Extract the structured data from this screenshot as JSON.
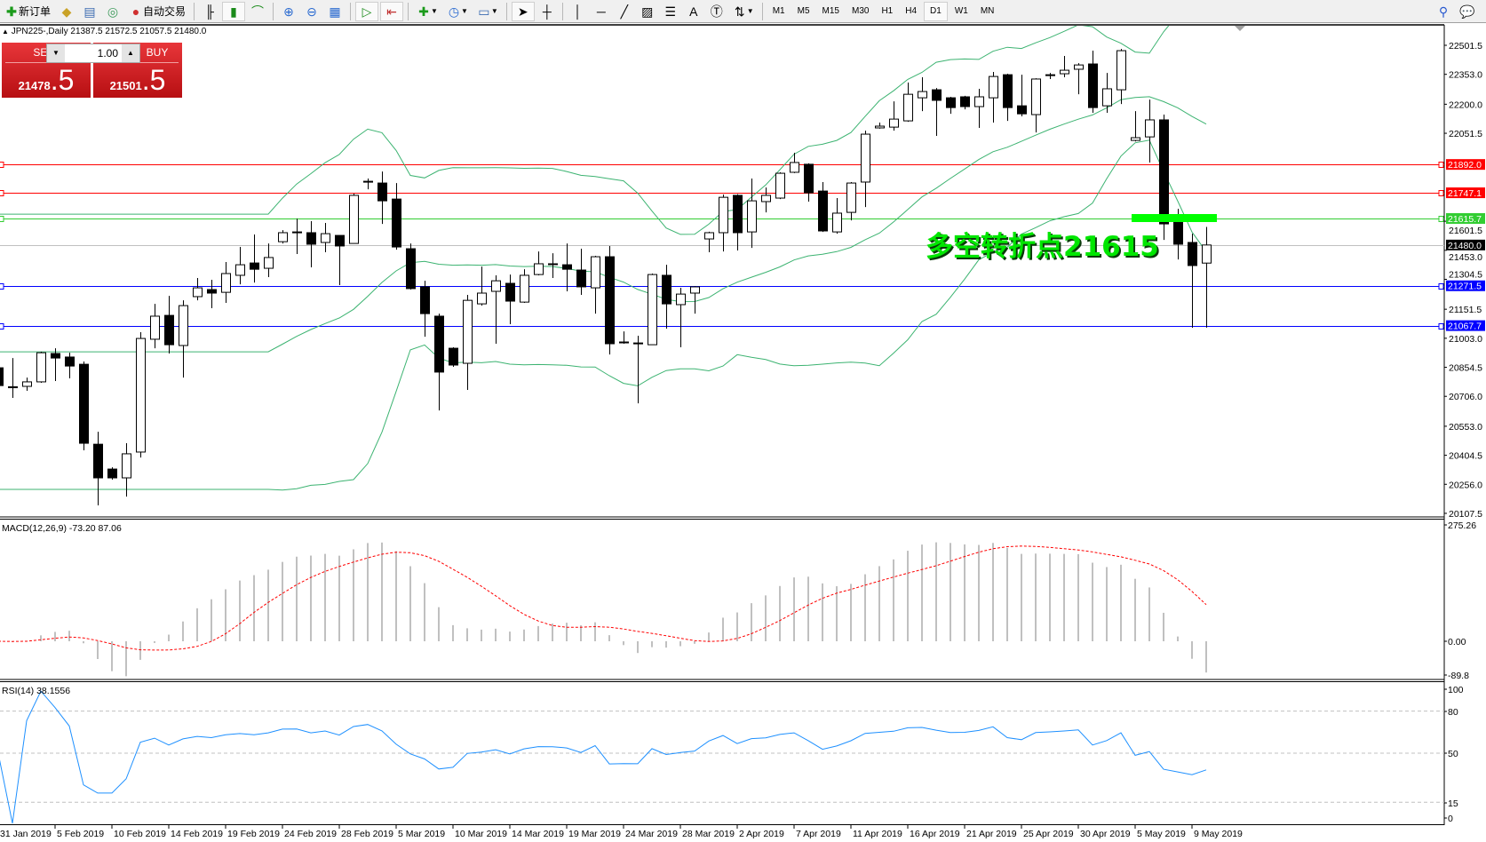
{
  "toolbar": {
    "new_order": "新订单",
    "auto_trading": "自动交易",
    "periods": [
      "M1",
      "M5",
      "M15",
      "M30",
      "H1",
      "H4",
      "D1",
      "W1",
      "MN"
    ],
    "active_period": "D1",
    "draw_text_tool": "A"
  },
  "chart": {
    "header": "JPN225-,Daily  21387.5 21572.5 21057.5 21480.0",
    "symbol": "JPN225-",
    "timeframe": "Daily",
    "last_ohlc": {
      "open": 21387.5,
      "high": 21572.5,
      "low": 21057.5,
      "close": 21480.0
    }
  },
  "trade_panel": {
    "sell_label": "SELL",
    "buy_label": "BUY",
    "volume": "1.00",
    "sell_price_main": "21478",
    "sell_price_frac": ".5",
    "buy_price_main": "21501",
    "buy_price_frac": ".5"
  },
  "annotation": {
    "text": "多空转折点21615",
    "color": "#00e600"
  },
  "price_axis": [
    "22501.5",
    "22353.0",
    "22200.0",
    "22051.5",
    "21601.5",
    "21453.0",
    "21304.5",
    "21151.5",
    "21003.0",
    "20854.5",
    "20706.0",
    "20553.0",
    "20404.5",
    "20256.0",
    "20107.5"
  ],
  "levels": [
    {
      "price": "21892.0",
      "color": "#ff0000"
    },
    {
      "price": "21747.1",
      "color": "#ff0000"
    },
    {
      "price": "21615.7",
      "color": "#32cd32"
    },
    {
      "price": "21480.0",
      "color": "#000000",
      "line_color": "#c0c0c0"
    },
    {
      "price": "21271.5",
      "color": "#0000ff"
    },
    {
      "price": "21067.7",
      "color": "#0000ff"
    }
  ],
  "macd": {
    "label": "MACD(12,26,9) -73.20 87.06",
    "axis": [
      "275.26",
      "0.00",
      "-89.8"
    ],
    "hist_color": "#c0c0c0",
    "signal_color": "#ff0000"
  },
  "rsi": {
    "label": "RSI(14) 38.1556",
    "axis": [
      "100",
      "80",
      "50",
      "15",
      "0"
    ],
    "line_color": "#1e90ff"
  },
  "bands_color": "#3cb371",
  "dates": [
    "31 Jan 2019",
    "5 Feb 2019",
    "10 Feb 2019",
    "14 Feb 2019",
    "19 Feb 2019",
    "24 Feb 2019",
    "28 Feb 2019",
    "5 Mar 2019",
    "10 Mar 2019",
    "14 Mar 2019",
    "19 Mar 2019",
    "24 Mar 2019",
    "28 Mar 2019",
    "2 Apr 2019",
    "7 Apr 2019",
    "11 Apr 2019",
    "16 Apr 2019",
    "21 Apr 2019",
    "25 Apr 2019",
    "30 Apr 2019",
    "5 May 2019",
    "9 May 2019"
  ],
  "chart_data": {
    "type": "candlestick",
    "ohlc_order": [
      "open",
      "high",
      "low",
      "close"
    ],
    "candles": [
      [
        20852,
        20870,
        20734,
        20761
      ],
      [
        20755,
        20902,
        20698,
        20750
      ],
      [
        20757,
        20802,
        20734,
        20780
      ],
      [
        20780,
        20934,
        20775,
        20929
      ],
      [
        20925,
        20952,
        20784,
        20902
      ],
      [
        20907,
        20929,
        20798,
        20861
      ],
      [
        20870,
        20884,
        20430,
        20466
      ],
      [
        20461,
        20525,
        20148,
        20289
      ],
      [
        20334,
        20343,
        20280,
        20289
      ],
      [
        20289,
        20466,
        20193,
        20412
      ],
      [
        20421,
        21034,
        20393,
        21002
      ],
      [
        20998,
        21179,
        20952,
        21116
      ],
      [
        21120,
        21220,
        20925,
        20970
      ],
      [
        20966,
        21197,
        20802,
        21170
      ],
      [
        21216,
        21311,
        21197,
        21261
      ],
      [
        21252,
        21302,
        21157,
        21234
      ],
      [
        21238,
        21393,
        21184,
        21334
      ],
      [
        21325,
        21470,
        21279,
        21379
      ],
      [
        21388,
        21534,
        21288,
        21356
      ],
      [
        21361,
        21488,
        21316,
        21416
      ],
      [
        21497,
        21556,
        21488,
        21543
      ],
      [
        21547,
        21615,
        21434,
        21545
      ],
      [
        21543,
        21602,
        21366,
        21484
      ],
      [
        21493,
        21593,
        21443,
        21538
      ],
      [
        21529,
        21529,
        21275,
        21475
      ],
      [
        21488,
        21743,
        21488,
        21734
      ],
      [
        21806,
        21820,
        21765,
        21804
      ],
      [
        21797,
        21856,
        21588,
        21706
      ],
      [
        21715,
        21797,
        21456,
        21470
      ],
      [
        21461,
        21488,
        21252,
        21257
      ],
      [
        21266,
        21297,
        21011,
        21129
      ],
      [
        21116,
        21129,
        20634,
        20830
      ],
      [
        20952,
        20957,
        20857,
        20866
      ],
      [
        20875,
        21225,
        20739,
        21197
      ],
      [
        21179,
        21370,
        21170,
        21234
      ],
      [
        21243,
        21325,
        20975,
        21297
      ],
      [
        21284,
        21329,
        21075,
        21193
      ],
      [
        21188,
        21356,
        21184,
        21325
      ],
      [
        21329,
        21447,
        21325,
        21384
      ],
      [
        21384,
        21438,
        21311,
        21382
      ],
      [
        21379,
        21488,
        21243,
        21356
      ],
      [
        21352,
        21461,
        21225,
        21266
      ],
      [
        21261,
        21425,
        21129,
        21420
      ],
      [
        21420,
        21475,
        20920,
        20975
      ],
      [
        20984,
        21038,
        20975,
        20982
      ],
      [
        20979,
        21016,
        20670,
        20977
      ],
      [
        20970,
        21334,
        20970,
        21329
      ],
      [
        21325,
        21379,
        21052,
        21179
      ],
      [
        21175,
        21261,
        20957,
        21229
      ],
      [
        21234,
        21270,
        21129,
        21266
      ],
      [
        21511,
        21548,
        21443,
        21543
      ],
      [
        21543,
        21738,
        21447,
        21724
      ],
      [
        21734,
        21740,
        21452,
        21543
      ],
      [
        21547,
        21820,
        21465,
        21706
      ],
      [
        21702,
        21774,
        21647,
        21734
      ],
      [
        21720,
        21852,
        21715,
        21847
      ],
      [
        21852,
        21952,
        21848,
        21902
      ],
      [
        21893,
        21898,
        21702,
        21747
      ],
      [
        21756,
        21802,
        21547,
        21552
      ],
      [
        21547,
        21720,
        21538,
        21643
      ],
      [
        21647,
        21802,
        21606,
        21797
      ],
      [
        21802,
        22065,
        21674,
        22047
      ],
      [
        22079,
        22106,
        22075,
        22088
      ],
      [
        22083,
        22215,
        22065,
        22124
      ],
      [
        22115,
        22311,
        22110,
        22251
      ],
      [
        22233,
        22338,
        22165,
        22265
      ],
      [
        22274,
        22283,
        22038,
        22220
      ],
      [
        22233,
        22238,
        22151,
        22183
      ],
      [
        22238,
        22243,
        22174,
        22188
      ],
      [
        22188,
        22279,
        22079,
        22238
      ],
      [
        22233,
        22365,
        22106,
        22342
      ],
      [
        22351,
        22356,
        22115,
        22183
      ],
      [
        22192,
        22351,
        22138,
        22151
      ],
      [
        22147,
        22333,
        22056,
        22329
      ],
      [
        22351,
        22360,
        22329,
        22349
      ],
      [
        22356,
        22447,
        22338,
        22374
      ],
      [
        22379,
        22410,
        22251,
        22401
      ],
      [
        22406,
        22474,
        22156,
        22183
      ],
      [
        22192,
        22360,
        22156,
        22279
      ],
      [
        22274,
        22483,
        22201,
        22474
      ],
      [
        22015,
        22165,
        22010,
        22029
      ],
      [
        22033,
        22224,
        21902,
        22120
      ],
      [
        22120,
        22147,
        21506,
        21588
      ],
      [
        21606,
        21665,
        21406,
        21484
      ],
      [
        21493,
        21538,
        21057,
        21375
      ],
      [
        21387.5,
        21572.5,
        21057.5,
        21480.0
      ]
    ],
    "ylim": [
      20107.5,
      22501.5
    ],
    "indicators": [
      "Bollinger Bands",
      "MACD(12,26,9)",
      "RSI(14)"
    ]
  }
}
